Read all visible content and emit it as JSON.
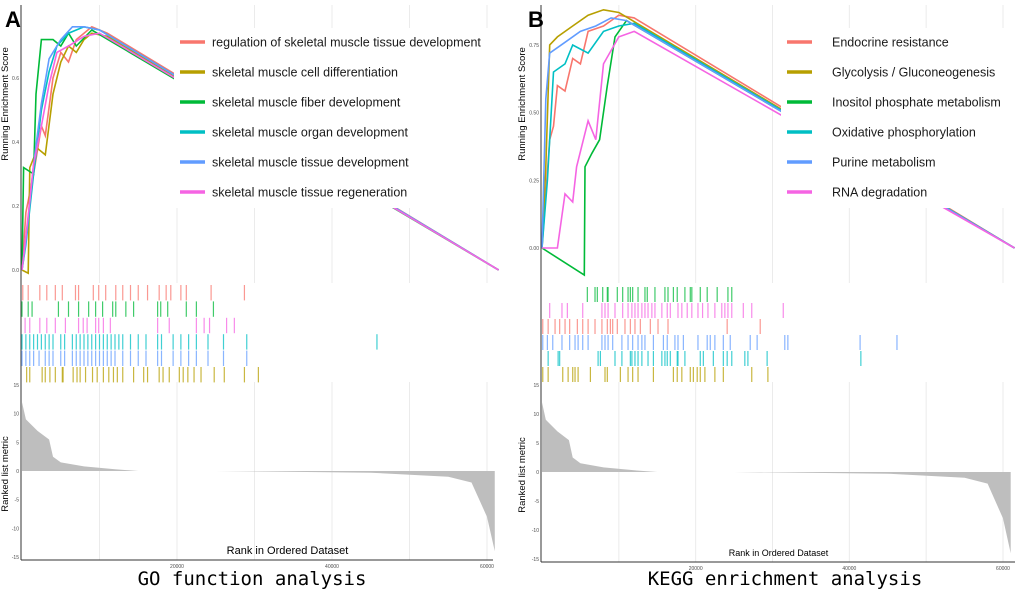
{
  "chart_data": [
    {
      "type": "line",
      "panel_label": "A",
      "caption": "GO function analysis",
      "ylabel_top": "Running Enrichment Score",
      "ylabel_bottom": "Ranked list metric",
      "xlabel": "Rank in Ordered Dataset",
      "x_ticks": [
        "20000",
        "40000",
        "60000"
      ],
      "es_ticks": [
        "0.0",
        "0.2",
        "0.4",
        "0.6"
      ],
      "es_tick_values": [
        0,
        0.2,
        0.4,
        0.6
      ],
      "es_ylim": [
        -0.04,
        0.83
      ],
      "metric_ticks": [
        "15",
        "10",
        "5",
        "0",
        "-5",
        "-10",
        "-15"
      ],
      "metric_ylim": [
        -15,
        15
      ],
      "xlim": [
        0,
        61500
      ],
      "hit_row_order": [
        0,
        2,
        5,
        3,
        4,
        1
      ],
      "series": [
        {
          "name": "regulation of skeletal muscle tissue development",
          "color": "#F8766D",
          "es": [
            [
              0,
              0
            ],
            [
              0.5,
              0.18
            ],
            [
              1.5,
              0.3
            ],
            [
              2.5,
              0.45
            ],
            [
              3,
              0.42
            ],
            [
              4,
              0.6
            ],
            [
              5,
              0.68
            ],
            [
              6,
              0.65
            ],
            [
              7,
              0.72
            ],
            [
              9,
              0.76
            ],
            [
              11,
              0.74
            ],
            [
              61.5,
              0
            ]
          ],
          "hits_k": [
            0.1,
            0.8,
            2.3,
            3.2,
            4.3,
            5.2,
            6.9,
            7.3,
            9.2,
            9.9,
            10.8,
            12.1,
            13,
            14,
            15,
            16.2,
            17.7,
            18.6,
            19.2,
            20.5,
            21.2,
            24.4,
            28.7
          ]
        },
        {
          "name": "skeletal muscle cell differentiation",
          "color": "#B79F00",
          "es": [
            [
              0,
              0
            ],
            [
              0.8,
              -0.01
            ],
            [
              1,
              0.32
            ],
            [
              2,
              0.38
            ],
            [
              3,
              0.36
            ],
            [
              4,
              0.55
            ],
            [
              5,
              0.65
            ],
            [
              6,
              0.7
            ],
            [
              7,
              0.68
            ],
            [
              8,
              0.72
            ],
            [
              9,
              0.74
            ],
            [
              11,
              0.73
            ],
            [
              61.5,
              0
            ]
          ],
          "hits_k": [
            0.6,
            1,
            2.6,
            3,
            3.6,
            4.3,
            5.2,
            5.3,
            6.6,
            7.1,
            7.5,
            8.2,
            9.1,
            9.7,
            10.5,
            11.2,
            11.8,
            12.3,
            13,
            14.4,
            15.7,
            16.2,
            17.7,
            18.2,
            19,
            20.3,
            20.8,
            21.4,
            22.2,
            23.1,
            24.8,
            26.1,
            28.7,
            30.5
          ]
        },
        {
          "name": "skeletal muscle fiber development",
          "color": "#00BA38",
          "es": [
            [
              0,
              0
            ],
            [
              0.2,
              0.32
            ],
            [
              1.5,
              0.3
            ],
            [
              1.8,
              0.55
            ],
            [
              2.5,
              0.72
            ],
            [
              4,
              0.72
            ],
            [
              5,
              0.7
            ],
            [
              6,
              0.74
            ],
            [
              7,
              0.7
            ],
            [
              9,
              0.75
            ],
            [
              61.5,
              0
            ]
          ],
          "hits_k": [
            0,
            0.8,
            1.3,
            4.7,
            6,
            7.3,
            8.6,
            9.5,
            10.4,
            11.7,
            12.1,
            13.4,
            14.4,
            17.5,
            17.9,
            18.8,
            21.2,
            22.5,
            24.7
          ]
        },
        {
          "name": "skeletal muscle organ development",
          "color": "#00BFC4",
          "es": [
            [
              0,
              0
            ],
            [
              0.5,
              0.08
            ],
            [
              1.5,
              0.3
            ],
            [
              2.5,
              0.5
            ],
            [
              3.5,
              0.62
            ],
            [
              4.5,
              0.7
            ],
            [
              6,
              0.74
            ],
            [
              8,
              0.76
            ],
            [
              10,
              0.75
            ],
            [
              61.5,
              0
            ]
          ],
          "hits_k": [
            0,
            0.5,
            1,
            1.5,
            2,
            2.5,
            3,
            3.5,
            4,
            5,
            5.5,
            6.5,
            7,
            7.5,
            8,
            8.5,
            9,
            9.5,
            10,
            10.5,
            11,
            11.5,
            12,
            12.5,
            13,
            14,
            15,
            16,
            17.5,
            18,
            19.5,
            20.5,
            21.5,
            22.5,
            24,
            26,
            29,
            45.8
          ]
        },
        {
          "name": "skeletal muscle tissue development",
          "color": "#619CFF",
          "es": [
            [
              0,
              0
            ],
            [
              0.5,
              0.09
            ],
            [
              1.5,
              0.33
            ],
            [
              2.5,
              0.52
            ],
            [
              3.5,
              0.66
            ],
            [
              5,
              0.72
            ],
            [
              6.5,
              0.76
            ],
            [
              8,
              0.76
            ],
            [
              10,
              0.75
            ],
            [
              61.5,
              0
            ]
          ],
          "hits_k": [
            0,
            0.5,
            1,
            1.5,
            2.2,
            3,
            3.5,
            4,
            5,
            5.5,
            6.5,
            7,
            7.5,
            8,
            8.5,
            9,
            9.5,
            10,
            10.5,
            11,
            11.5,
            12,
            13,
            14,
            15,
            16,
            17.5,
            18,
            19.5,
            20.5,
            21.5,
            22.5,
            24,
            26,
            29
          ]
        },
        {
          "name": "skeletal muscle tissue regeneration",
          "color": "#F564E3",
          "es": [
            [
              0,
              0
            ],
            [
              0.8,
              0.17
            ],
            [
              1.5,
              0.33
            ],
            [
              2.5,
              0.45
            ],
            [
              3.5,
              0.58
            ],
            [
              4.5,
              0.68
            ],
            [
              6,
              0.7
            ],
            [
              8,
              0.73
            ],
            [
              10,
              0.74
            ],
            [
              61.5,
              0
            ]
          ],
          "hits_k": [
            0.4,
            1,
            2.3,
            3.2,
            4.3,
            5.6,
            7.3,
            7.9,
            8.4,
            9.5,
            9.9,
            10.5,
            11.4,
            17.5,
            19,
            22.5,
            23.5,
            24.2,
            26.4,
            27.4
          ]
        }
      ],
      "metric": [
        [
          0,
          12
        ],
        [
          0.5,
          9
        ],
        [
          2,
          7
        ],
        [
          3.5,
          5.5
        ],
        [
          4,
          2.5
        ],
        [
          5,
          1.5
        ],
        [
          8,
          0.8
        ],
        [
          12,
          0.3
        ],
        [
          15,
          0
        ],
        [
          25,
          0
        ],
        [
          45,
          -0.3
        ],
        [
          55,
          -1
        ],
        [
          58,
          -2
        ],
        [
          59,
          -5
        ],
        [
          60,
          -8
        ],
        [
          61,
          -14
        ]
      ]
    },
    {
      "type": "line",
      "panel_label": "B",
      "caption": "KEGG enrichment analysis",
      "ylabel_top": "Running Enrichment Score",
      "ylabel_bottom": "Ranked list metric",
      "xlabel": "Rank in Ordered Dataset",
      "x_ticks": [
        "20000",
        "40000",
        "60000"
      ],
      "es_ticks": [
        "0.00",
        "0.25",
        "0.50",
        "0.75"
      ],
      "es_tick_values": [
        0,
        0.25,
        0.5,
        0.75
      ],
      "es_ylim": [
        -0.13,
        0.9
      ],
      "metric_ticks": [
        "15",
        "10",
        "5",
        "0",
        "-5",
        "-10",
        "-15"
      ],
      "metric_ylim": [
        -15,
        15
      ],
      "xlim": [
        0,
        61500
      ],
      "hit_row_order": [
        2,
        5,
        0,
        4,
        3,
        1
      ],
      "series": [
        {
          "name": "Endocrine resistance",
          "color": "#F8766D",
          "es": [
            [
              0,
              0
            ],
            [
              1,
              0.4
            ],
            [
              1.5,
              0.45
            ],
            [
              2,
              0.6
            ],
            [
              3,
              0.58
            ],
            [
              4,
              0.7
            ],
            [
              5,
              0.68
            ],
            [
              6,
              0.8
            ],
            [
              8,
              0.82
            ],
            [
              10,
              0.86
            ],
            [
              12,
              0.85
            ],
            [
              61.5,
              0
            ]
          ],
          "hits_k": [
            0.1,
            0.8,
            1.7,
            2.3,
            3,
            3.6,
            4.6,
            5.3,
            6,
            6.9,
            7.8,
            8.5,
            8.9,
            9.2,
            9.8,
            10.8,
            11.5,
            12.1,
            12.8,
            14.1,
            15.1,
            16.4,
            24.1,
            28.4
          ]
        },
        {
          "name": "Glycolysis / Gluconeogenesis",
          "color": "#B79F00",
          "es": [
            [
              0,
              0
            ],
            [
              0.5,
              0.3
            ],
            [
              1,
              0.75
            ],
            [
              2,
              0.78
            ],
            [
              4,
              0.82
            ],
            [
              6,
              0.86
            ],
            [
              8,
              0.88
            ],
            [
              10,
              0.87
            ],
            [
              61.5,
              0
            ]
          ],
          "hits_k": [
            0.1,
            0.8,
            2.7,
            3.4,
            4,
            4.3,
            4.7,
            6.3,
            8.2,
            8.5,
            10.2,
            11.2,
            11.8,
            12.5,
            14.5,
            17.1,
            17.6,
            18.2,
            19.3,
            19.7,
            20.2,
            20.6,
            21.2,
            22.5,
            23.6,
            27.3,
            29.4
          ]
        },
        {
          "name": "Inositol phosphate metabolism",
          "color": "#00BA38",
          "es": [
            [
              0,
              0
            ],
            [
              5.5,
              -0.1
            ],
            [
              5.6,
              0.3
            ],
            [
              6.5,
              0.35
            ],
            [
              7.5,
              0.4
            ],
            [
              8.5,
              0.6
            ],
            [
              9.5,
              0.78
            ],
            [
              11,
              0.84
            ],
            [
              61.5,
              0
            ]
          ],
          "hits_k": [
            5.9,
            6.9,
            7.2,
            7.9,
            8.5,
            8.6,
            9.8,
            10.5,
            11.2,
            11.5,
            11.8,
            12.5,
            13.4,
            13.7,
            14.7,
            16,
            16.4,
            17.1,
            17.6,
            18.6,
            19.3,
            19.5,
            20.6,
            21.5,
            22.8,
            24.2,
            24.7
          ]
        },
        {
          "name": "Oxidative phosphorylation",
          "color": "#00BFC4",
          "es": [
            [
              0,
              0
            ],
            [
              0.7,
              0.25
            ],
            [
              1.5,
              0.65
            ],
            [
              3,
              0.68
            ],
            [
              4,
              0.75
            ],
            [
              6,
              0.72
            ],
            [
              8,
              0.8
            ],
            [
              10,
              0.82
            ],
            [
              12,
              0.83
            ],
            [
              61.5,
              0
            ]
          ],
          "hits_k": [
            0.8,
            2.1,
            2.3,
            7.3,
            7.6,
            9.5,
            10.4,
            11.5,
            11.7,
            12.1,
            12.5,
            13,
            13.8,
            14.5,
            15.6,
            16,
            16.3,
            16.7,
            17.6,
            17.7,
            18.6,
            20.6,
            21,
            22.3,
            23.6,
            24.1,
            24.7,
            26.4,
            26.8,
            29.3,
            41.5
          ]
        },
        {
          "name": "Purine metabolism",
          "color": "#619CFF",
          "es": [
            [
              0,
              0
            ],
            [
              0.5,
              0.55
            ],
            [
              1,
              0.72
            ],
            [
              3,
              0.76
            ],
            [
              5,
              0.8
            ],
            [
              7,
              0.82
            ],
            [
              9,
              0.85
            ],
            [
              11,
              0.84
            ],
            [
              61.5,
              0
            ]
          ],
          "hits_k": [
            0.1,
            0.7,
            1.4,
            2.6,
            3.6,
            4.3,
            4.7,
            5.3,
            6,
            7.8,
            8.2,
            8.6,
            9.2,
            10.4,
            11.2,
            11.8,
            12.5,
            13,
            13.4,
            14.5,
            15.8,
            16.3,
            17.3,
            17.7,
            18.4,
            20.3,
            21.5,
            21.9,
            22.5,
            23.6,
            24.5,
            27.1,
            28,
            31.6,
            32,
            41.4,
            46.2
          ]
        },
        {
          "name": "RNA degradation",
          "color": "#F564E3",
          "es": [
            [
              0,
              0
            ],
            [
              2,
              0
            ],
            [
              3,
              0.2
            ],
            [
              4,
              0.17
            ],
            [
              4.5,
              0.3
            ],
            [
              6,
              0.47
            ],
            [
              7,
              0.4
            ],
            [
              8,
              0.68
            ],
            [
              10,
              0.78
            ],
            [
              12,
              0.8
            ],
            [
              61.5,
              0
            ]
          ],
          "hits_k": [
            1,
            2.6,
            3.3,
            5.3,
            7.8,
            8.2,
            8.6,
            9.5,
            10.5,
            11.2,
            11.7,
            12.1,
            12.5,
            13,
            13.4,
            13.8,
            14.3,
            14.7,
            15.6,
            16.3,
            16.7,
            17.7,
            18.2,
            18.9,
            19.5,
            20.3,
            20.9,
            21.6,
            22.5,
            23.4,
            23.8,
            24.2,
            24.7,
            26.2,
            27.3,
            31.4
          ]
        }
      ],
      "metric": [
        [
          0,
          12
        ],
        [
          0.5,
          9
        ],
        [
          2,
          7
        ],
        [
          3.5,
          5.5
        ],
        [
          4,
          2.5
        ],
        [
          5,
          1.5
        ],
        [
          8,
          0.8
        ],
        [
          12,
          0.3
        ],
        [
          15,
          0
        ],
        [
          25,
          0
        ],
        [
          45,
          -0.3
        ],
        [
          55,
          -1
        ],
        [
          58,
          -2
        ],
        [
          59,
          -5
        ],
        [
          60,
          -8
        ],
        [
          61,
          -14
        ]
      ]
    }
  ]
}
